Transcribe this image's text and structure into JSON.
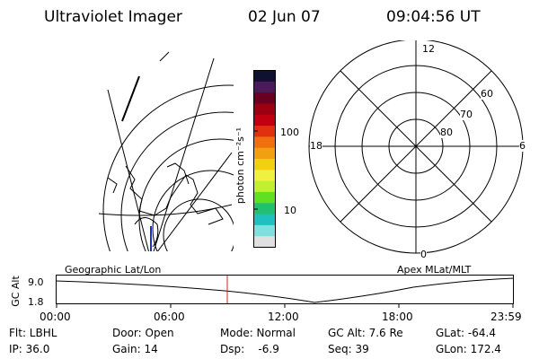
{
  "header": {
    "instrument": "Ultraviolet Imager",
    "date": "02 Jun 07",
    "time": "09:04:56 UT"
  },
  "colorbar": {
    "unit_label": "photon cm⁻²s⁻¹",
    "tick_labels": [
      "100",
      "10"
    ],
    "colors": [
      "#101030",
      "#4a1a5a",
      "#6a0020",
      "#9a0010",
      "#c00010",
      "#e03010",
      "#f07010",
      "#f0a010",
      "#f0d010",
      "#f0f040",
      "#c0f030",
      "#60e020",
      "#20c070",
      "#20c0c0",
      "#80e0e0",
      "#e0e0e0"
    ]
  },
  "polar_plot": {
    "mlt_labels": {
      "top": "12",
      "bottom": "0",
      "left": "18",
      "right": "6"
    },
    "lat_labels": [
      "60",
      "70",
      "80"
    ]
  },
  "timeline": {
    "left_caption": "Geographic Lat/Lon",
    "right_caption": "Apex MLat/MLT",
    "axis_title": "GC Alt",
    "y_ticks": [
      "9.0",
      "1.8"
    ],
    "x_ticks": [
      "00:00",
      "06:00",
      "12:00",
      "18:00",
      "23:59"
    ],
    "current_time_color": "#d02020"
  },
  "footer": {
    "row1": [
      "Flt: LBHL",
      "Door: Open",
      "Mode: Normal",
      "GC Alt: 7.6 Re",
      "GLat: -64.4"
    ],
    "row2": [
      "IP: 36.0",
      "Gain: 14",
      "Dsp:    -6.9",
      "Seq: 39",
      "GLon: 172.4"
    ]
  }
}
